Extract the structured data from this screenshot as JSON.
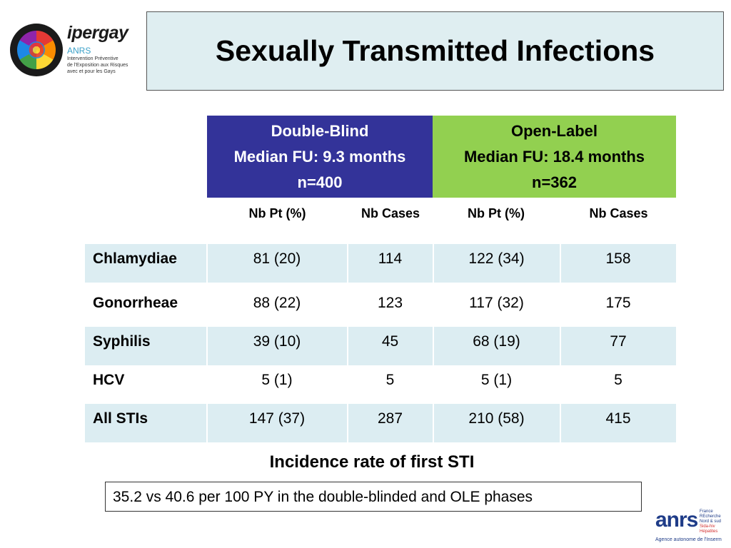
{
  "logo": {
    "name": "ipergay",
    "org": "ANRS",
    "tagline_lines": [
      "Intervention Préventive",
      "de l'Exposition aux Risques",
      "avec et pour les Gays"
    ]
  },
  "title": "Sexually Transmitted Infections",
  "groups": {
    "double_blind": {
      "label": "Double-Blind",
      "followup": "Median FU: 9.3 months",
      "n": "n=400",
      "color": "#333399"
    },
    "open_label": {
      "label": "Open-Label",
      "followup": "Median FU: 18.4 months",
      "n": "n=362",
      "color": "#92d050"
    }
  },
  "columns": [
    "Nb Pt (%)",
    "Nb Cases",
    "Nb Pt (%)",
    "Nb Cases"
  ],
  "rows": [
    {
      "name": "Chlamydiae",
      "values": [
        "81 (20)",
        "114",
        "122 (34)",
        "158"
      ]
    },
    {
      "name": "Gonorrheae",
      "values": [
        "88 (22)",
        "123",
        "117 (32)",
        "175"
      ]
    },
    {
      "name": "Syphilis",
      "values": [
        "39 (10)",
        "45",
        "68 (19)",
        "77"
      ]
    },
    {
      "name": "HCV",
      "values": [
        "5 (1)",
        "5",
        "5 (1)",
        "5"
      ]
    },
    {
      "name": "All STIs",
      "values": [
        "147 (37)",
        "287",
        "210 (58)",
        "415"
      ]
    }
  ],
  "incidence_title": "Incidence rate of first STI",
  "incidence_note": "35.2 vs 40.6 per 100 PY in the double-blinded and OLE phases",
  "footer_logo": {
    "word": "anrs",
    "lines": [
      "France",
      "REcherche",
      "Nord & sud",
      "Sida-hiv",
      "Hépatites"
    ],
    "sub": "Agence autonome de l'Inserm"
  },
  "colors": {
    "title_bg": "#dfeef1",
    "row_shade": "#dcedf2"
  }
}
